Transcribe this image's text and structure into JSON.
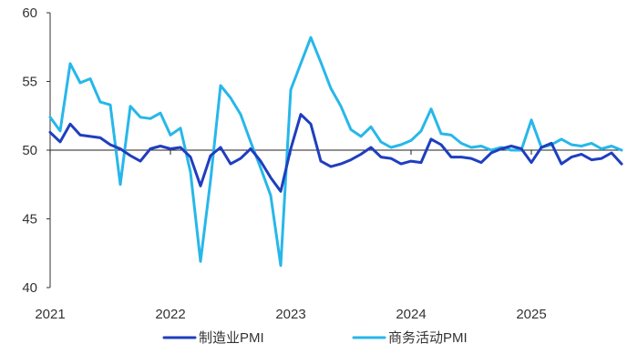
{
  "chart_data": {
    "type": "line",
    "title": "",
    "xlabel": "",
    "ylabel": "",
    "ylim": [
      40,
      60
    ],
    "yticks": [
      40,
      45,
      50,
      55,
      60
    ],
    "reference_line": 50,
    "x_tick_labels": [
      {
        "label": "2021",
        "x": 2021
      },
      {
        "label": "2022",
        "x": 2022
      },
      {
        "label": "2023",
        "x": 2023
      },
      {
        "label": "2024",
        "x": 2024
      },
      {
        "label": "2025",
        "x": 2025
      }
    ],
    "xlim": [
      2021,
      2025.75
    ],
    "legend_position": "bottom",
    "series": [
      {
        "name": "制造业PMI",
        "color": "#1f3ebf",
        "x": [
          2021.0,
          2021.083,
          2021.167,
          2021.25,
          2021.333,
          2021.417,
          2021.5,
          2021.583,
          2021.667,
          2021.75,
          2021.833,
          2021.917,
          2022.0,
          2022.083,
          2022.167,
          2022.25,
          2022.333,
          2022.417,
          2022.5,
          2022.583,
          2022.667,
          2022.75,
          2022.833,
          2022.917,
          2023.0,
          2023.083,
          2023.167,
          2023.25,
          2023.333,
          2023.417,
          2023.5,
          2023.583,
          2023.667,
          2023.75,
          2023.833,
          2023.917,
          2024.0,
          2024.083,
          2024.167,
          2024.25,
          2024.333,
          2024.417,
          2024.5,
          2024.583,
          2024.667,
          2024.75,
          2024.833,
          2024.917,
          2025.0,
          2025.083,
          2025.167,
          2025.25,
          2025.333,
          2025.417,
          2025.5,
          2025.583,
          2025.667,
          2025.75
        ],
        "values": [
          51.3,
          50.6,
          51.9,
          51.1,
          51.0,
          50.9,
          50.4,
          50.1,
          49.6,
          49.2,
          50.1,
          50.3,
          50.1,
          50.2,
          49.5,
          47.4,
          49.6,
          50.2,
          49.0,
          49.4,
          50.1,
          49.2,
          48.0,
          47.0,
          50.1,
          52.6,
          51.9,
          49.2,
          48.8,
          49.0,
          49.3,
          49.7,
          50.2,
          49.5,
          49.4,
          49.0,
          49.2,
          49.1,
          50.8,
          50.4,
          49.5,
          49.5,
          49.4,
          49.1,
          49.8,
          50.1,
          50.3,
          50.1,
          49.1,
          50.2,
          50.5,
          49.0,
          49.5,
          49.7,
          49.3,
          49.4,
          49.8,
          49.0
        ]
      },
      {
        "name": "商务活动PMI",
        "color": "#27b7ea",
        "x": [
          2021.0,
          2021.083,
          2021.167,
          2021.25,
          2021.333,
          2021.417,
          2021.5,
          2021.583,
          2021.667,
          2021.75,
          2021.833,
          2021.917,
          2022.0,
          2022.083,
          2022.167,
          2022.25,
          2022.333,
          2022.417,
          2022.5,
          2022.583,
          2022.667,
          2022.75,
          2022.833,
          2022.917,
          2023.0,
          2023.083,
          2023.167,
          2023.25,
          2023.333,
          2023.417,
          2023.5,
          2023.583,
          2023.667,
          2023.75,
          2023.833,
          2023.917,
          2024.0,
          2024.083,
          2024.167,
          2024.25,
          2024.333,
          2024.417,
          2024.5,
          2024.583,
          2024.667,
          2024.75,
          2024.833,
          2024.917,
          2025.0,
          2025.083,
          2025.167,
          2025.25,
          2025.333,
          2025.417,
          2025.5,
          2025.583,
          2025.667,
          2025.75
        ],
        "values": [
          52.4,
          51.4,
          56.3,
          54.9,
          55.2,
          53.5,
          53.3,
          47.5,
          53.2,
          52.4,
          52.3,
          52.7,
          51.1,
          51.6,
          48.4,
          41.9,
          47.8,
          54.7,
          53.8,
          52.6,
          50.6,
          48.7,
          46.7,
          41.6,
          54.4,
          56.3,
          58.2,
          56.4,
          54.5,
          53.2,
          51.5,
          51.0,
          51.7,
          50.6,
          50.2,
          50.4,
          50.7,
          51.4,
          53.0,
          51.2,
          51.1,
          50.5,
          50.2,
          50.3,
          50.0,
          50.2,
          50.0,
          50.0,
          52.2,
          50.2,
          50.4,
          50.8,
          50.4,
          50.3,
          50.5,
          50.1,
          50.3,
          50.0
        ]
      }
    ]
  }
}
